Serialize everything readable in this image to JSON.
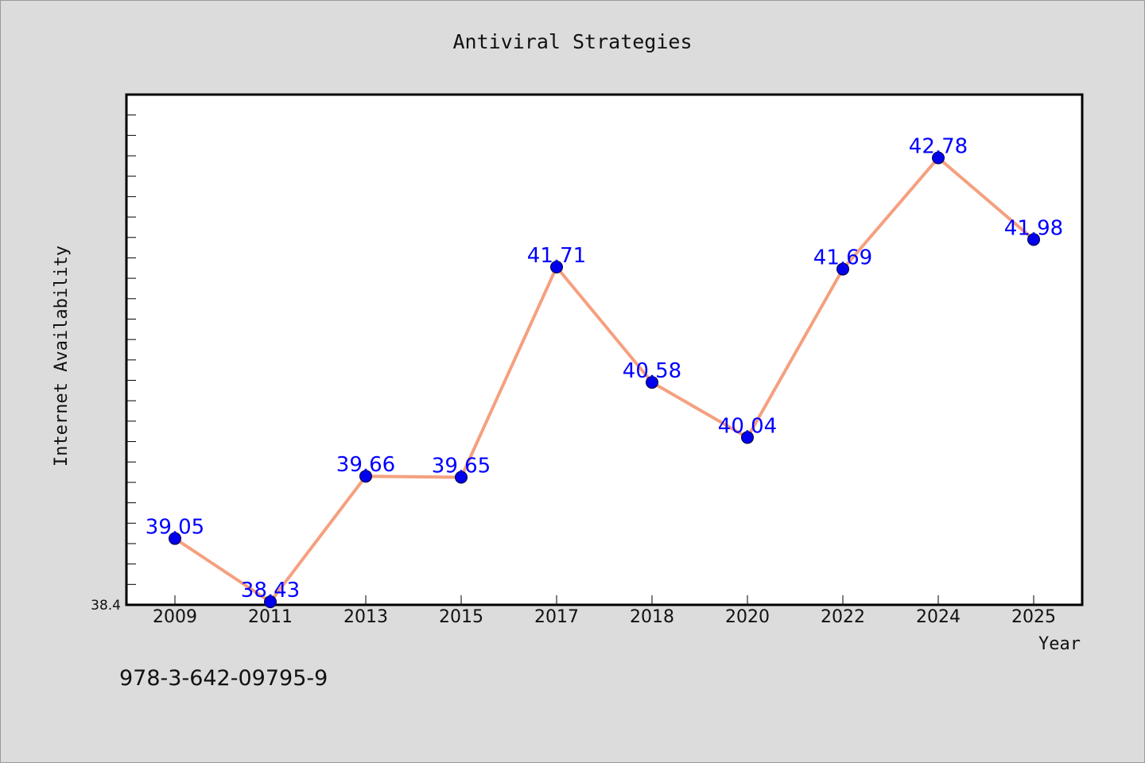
{
  "chart_data": {
    "type": "line",
    "title": "Antiviral Strategies",
    "xlabel": "Year",
    "ylabel": "Internet Availability",
    "categories": [
      "2009",
      "2011",
      "2013",
      "2015",
      "2017",
      "2018",
      "2020",
      "2022",
      "2024",
      "2025"
    ],
    "series": [
      {
        "values": [
          39.05,
          38.43,
          39.66,
          39.65,
          41.71,
          40.58,
          40.04,
          41.69,
          42.78,
          41.98
        ],
        "labels": [
          "39.05",
          "38.43",
          "39.66",
          "39.65",
          "41.71",
          "40.58",
          "40.04",
          "41.69",
          "42.78",
          "41.98"
        ],
        "line_color": "#f5a07f",
        "marker_color": "#0000ee"
      }
    ],
    "y_tick_labels": [
      "38.4"
    ],
    "ylim": [
      38.4,
      43.4
    ],
    "grid": false,
    "label_color": "#0000ff"
  },
  "footer": {
    "isbn": "978-3-642-09795-9"
  }
}
